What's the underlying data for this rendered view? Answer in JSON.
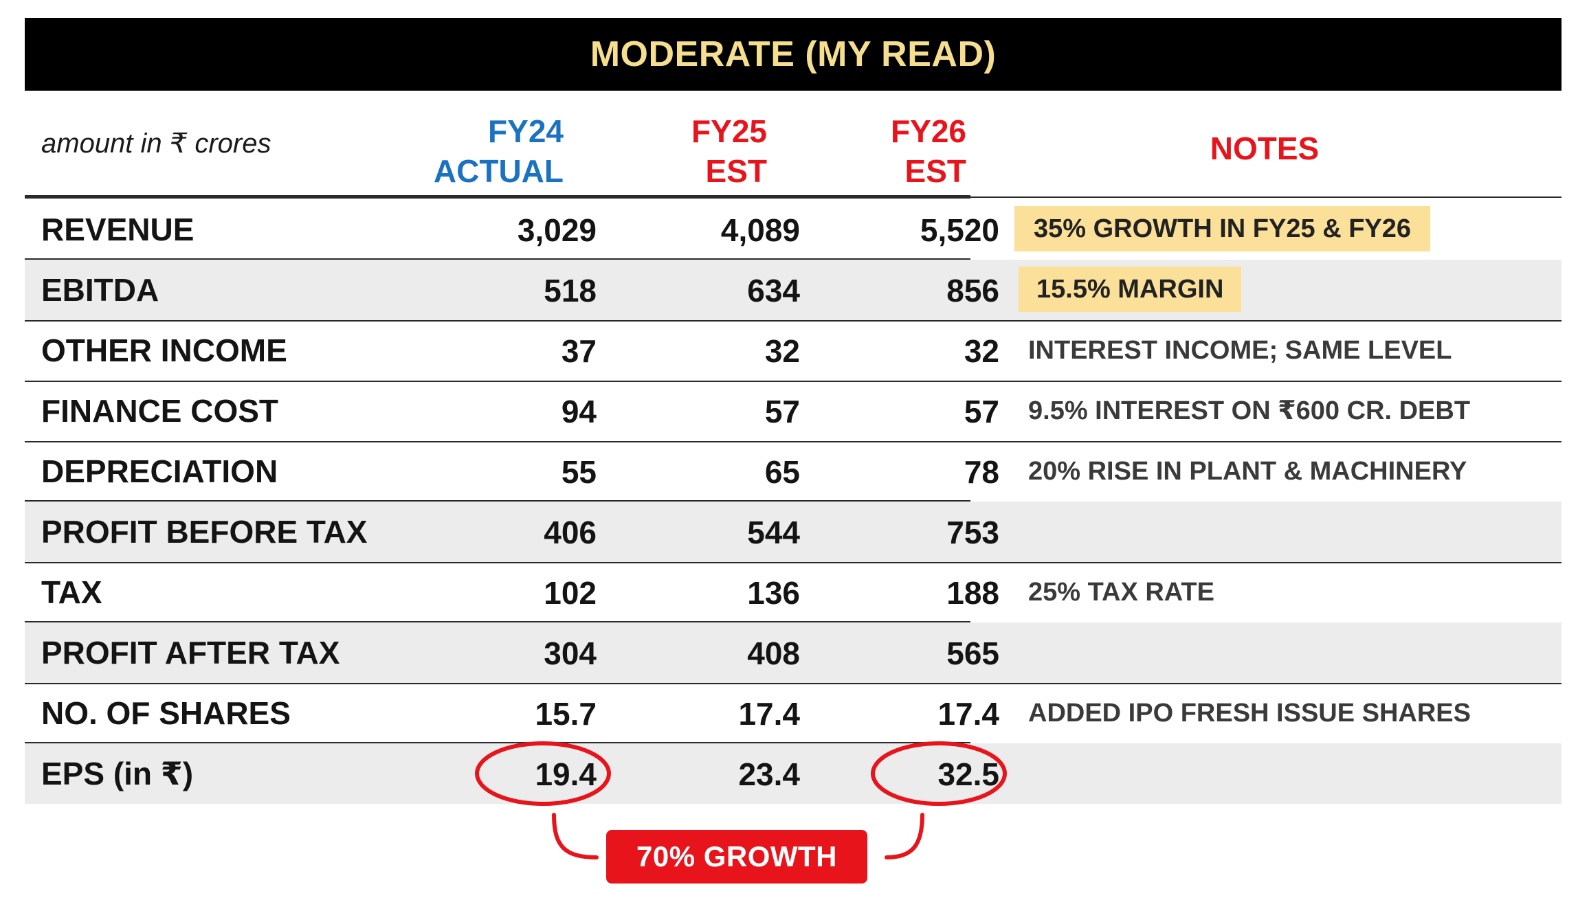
{
  "title": "MODERATE (MY READ)",
  "units_label": "amount in ₹ crores",
  "columns": [
    {
      "line1": "FY24",
      "line2": "ACTUAL",
      "color": "#1a72c0"
    },
    {
      "line1": "FY25",
      "line2": "EST",
      "color": "#e8141c"
    },
    {
      "line1": "FY26",
      "line2": "EST",
      "color": "#e8141c"
    }
  ],
  "notes_header": "NOTES",
  "rows": [
    {
      "label": "REVENUE",
      "fy24": "3,029",
      "fy25": "4,089",
      "fy26": "5,520",
      "note": "35% GROWTH IN FY25 & FY26"
    },
    {
      "label": "EBITDA",
      "fy24": "518",
      "fy25": "634",
      "fy26": "856",
      "note": "15.5% MARGIN"
    },
    {
      "label": "OTHER INCOME",
      "fy24": "37",
      "fy25": "32",
      "fy26": "32",
      "note": "INTEREST INCOME; SAME LEVEL"
    },
    {
      "label": "FINANCE COST",
      "fy24": "94",
      "fy25": "57",
      "fy26": "57",
      "note": "9.5% INTEREST ON ₹600 CR. DEBT"
    },
    {
      "label": "DEPRECIATION",
      "fy24": "55",
      "fy25": "65",
      "fy26": "78",
      "note": "20% RISE IN PLANT & MACHINERY"
    },
    {
      "label": "PROFIT BEFORE TAX",
      "fy24": "406",
      "fy25": "544",
      "fy26": "753",
      "note": ""
    },
    {
      "label": "TAX",
      "fy24": "102",
      "fy25": "136",
      "fy26": "188",
      "note": "25% TAX RATE"
    },
    {
      "label": "PROFIT AFTER TAX",
      "fy24": "304",
      "fy25": "408",
      "fy26": "565",
      "note": ""
    },
    {
      "label": "NO. OF SHARES",
      "fy24": "15.7",
      "fy25": "17.4",
      "fy26": "17.4",
      "note": "ADDED IPO FRESH ISSUE SHARES"
    },
    {
      "label": "EPS (in ₹)",
      "fy24": "19.4",
      "fy25": "23.4",
      "fy26": "32.5",
      "note": ""
    }
  ],
  "growth_badge": "70% GROWTH",
  "colors": {
    "title_bg": "#000000",
    "title_text": "#f5df8e",
    "actual_blue": "#1a72c0",
    "estimate_red": "#e8141c",
    "highlight": "#fbe09a",
    "row_shade": "#ececec"
  }
}
